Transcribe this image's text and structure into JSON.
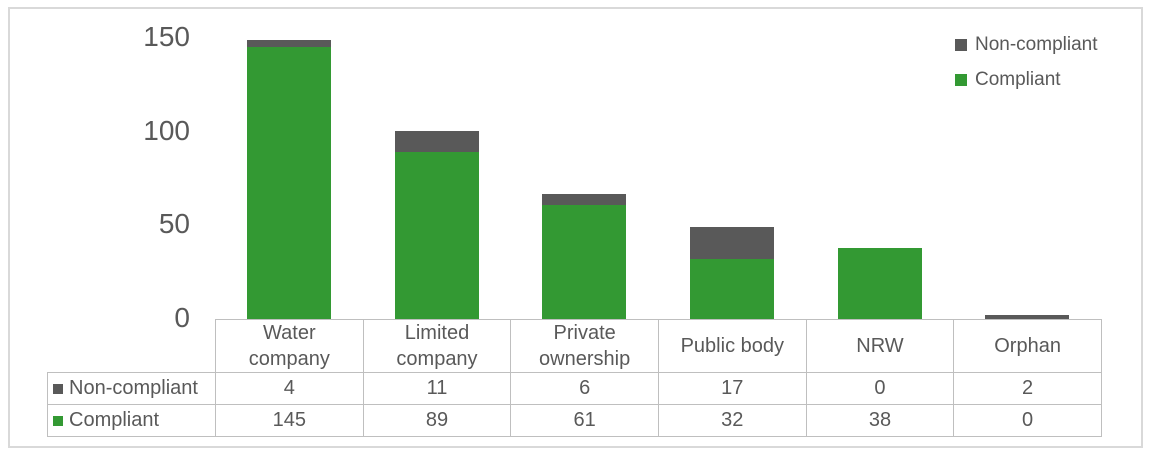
{
  "chart_data": {
    "type": "bar",
    "stacked": true,
    "title": "",
    "xlabel": "",
    "ylabel": "",
    "categories": [
      "Water company",
      "Limited company",
      "Private ownership",
      "Public body",
      "NRW",
      "Orphan"
    ],
    "series": [
      {
        "name": "Non-compliant",
        "color": "#595959",
        "values": [
          4,
          11,
          6,
          17,
          0,
          2
        ]
      },
      {
        "name": "Compliant",
        "color": "#339933",
        "values": [
          145,
          89,
          61,
          32,
          38,
          0
        ]
      }
    ],
    "ylim": [
      0,
      150
    ],
    "y_ticks": [
      0,
      50,
      100,
      150
    ],
    "legend_position": "top-right",
    "grid": false,
    "data_table_shown": true
  },
  "colors": {
    "noncompliant": "#595959",
    "compliant": "#339933",
    "axis_text": "#595959",
    "table_border": "#BFBFBF",
    "frame_border": "#D9D9D9",
    "background": "#ffffff"
  }
}
